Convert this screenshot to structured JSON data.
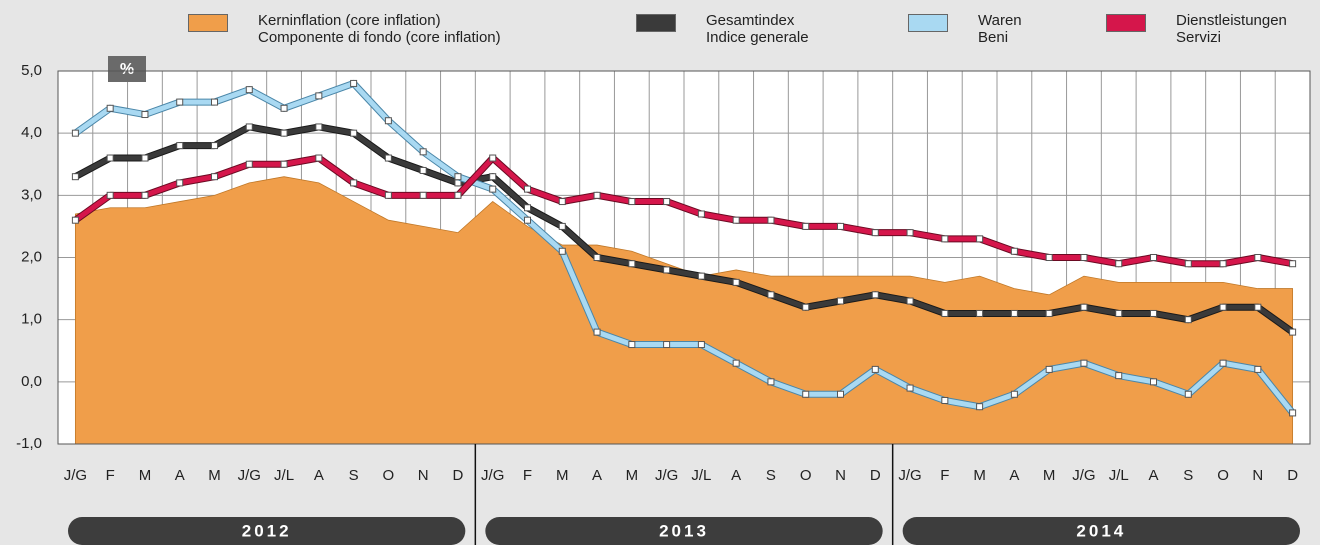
{
  "chart_data": {
    "type": "line",
    "unit_label": "%",
    "categories": [
      "J/G",
      "F",
      "M",
      "A",
      "M",
      "J/G",
      "J/L",
      "A",
      "S",
      "O",
      "N",
      "D",
      "J/G",
      "F",
      "M",
      "A",
      "M",
      "J/G",
      "J/L",
      "A",
      "S",
      "O",
      "N",
      "D",
      "J/G",
      "F",
      "M",
      "A",
      "M",
      "J/G",
      "J/L",
      "A",
      "S",
      "O",
      "N",
      "D"
    ],
    "years": [
      "2012",
      "2013",
      "2014"
    ],
    "ylim": [
      -1,
      5
    ],
    "yticks": [
      {
        "value": 5,
        "label": "5,0"
      },
      {
        "value": 4,
        "label": "4,0"
      },
      {
        "value": 3,
        "label": "3,0"
      },
      {
        "value": 2,
        "label": "2,0"
      },
      {
        "value": 1,
        "label": "1,0"
      },
      {
        "value": 0,
        "label": "0,0"
      },
      {
        "value": -1,
        "label": "-1,0"
      }
    ],
    "grid": true,
    "series": [
      {
        "name": "Kerninflation (core inflation)\nComponente di fondo (core inflation)",
        "color": "#f09e4a",
        "style": "area",
        "values": [
          2.7,
          2.8,
          2.8,
          2.9,
          3.0,
          3.2,
          3.3,
          3.2,
          2.9,
          2.6,
          2.5,
          2.4,
          2.9,
          2.5,
          2.2,
          2.2,
          2.1,
          1.9,
          1.7,
          1.8,
          1.7,
          1.7,
          1.7,
          1.7,
          1.7,
          1.6,
          1.7,
          1.5,
          1.4,
          1.7,
          1.6,
          1.6,
          1.6,
          1.6,
          1.5,
          1.5
        ]
      },
      {
        "name": "Gesamtindex\nIndice generale",
        "color": "#3a3a3a",
        "style": "line",
        "values": [
          3.3,
          3.6,
          3.6,
          3.8,
          3.8,
          4.1,
          4.0,
          4.1,
          4.0,
          3.6,
          3.4,
          3.2,
          3.3,
          2.8,
          2.5,
          2.0,
          1.9,
          1.8,
          1.7,
          1.6,
          1.4,
          1.2,
          1.3,
          1.4,
          1.3,
          1.1,
          1.1,
          1.1,
          1.1,
          1.2,
          1.1,
          1.1,
          1.0,
          1.2,
          1.2,
          0.8
        ]
      },
      {
        "name": "Waren\nBeni",
        "color": "#a9d9f2",
        "style": "line",
        "values": [
          4.0,
          4.4,
          4.3,
          4.5,
          4.5,
          4.7,
          4.4,
          4.6,
          4.8,
          4.2,
          3.7,
          3.3,
          3.1,
          2.6,
          2.1,
          0.8,
          0.6,
          0.6,
          0.6,
          0.3,
          0.0,
          -0.2,
          -0.2,
          0.2,
          -0.1,
          -0.3,
          -0.4,
          -0.2,
          0.2,
          0.3,
          0.1,
          0.0,
          -0.2,
          0.3,
          0.2,
          -0.5
        ]
      },
      {
        "name": "Dienstleistungen\nServizi",
        "color": "#d5164b",
        "style": "line",
        "values": [
          2.6,
          3.0,
          3.0,
          3.2,
          3.3,
          3.5,
          3.5,
          3.6,
          3.2,
          3.0,
          3.0,
          3.0,
          3.6,
          3.1,
          2.9,
          3.0,
          2.9,
          2.9,
          2.7,
          2.6,
          2.6,
          2.5,
          2.5,
          2.4,
          2.4,
          2.3,
          2.3,
          2.1,
          2.0,
          2.0,
          1.9,
          2.0,
          1.9,
          1.9,
          2.0,
          1.9
        ]
      }
    ]
  }
}
